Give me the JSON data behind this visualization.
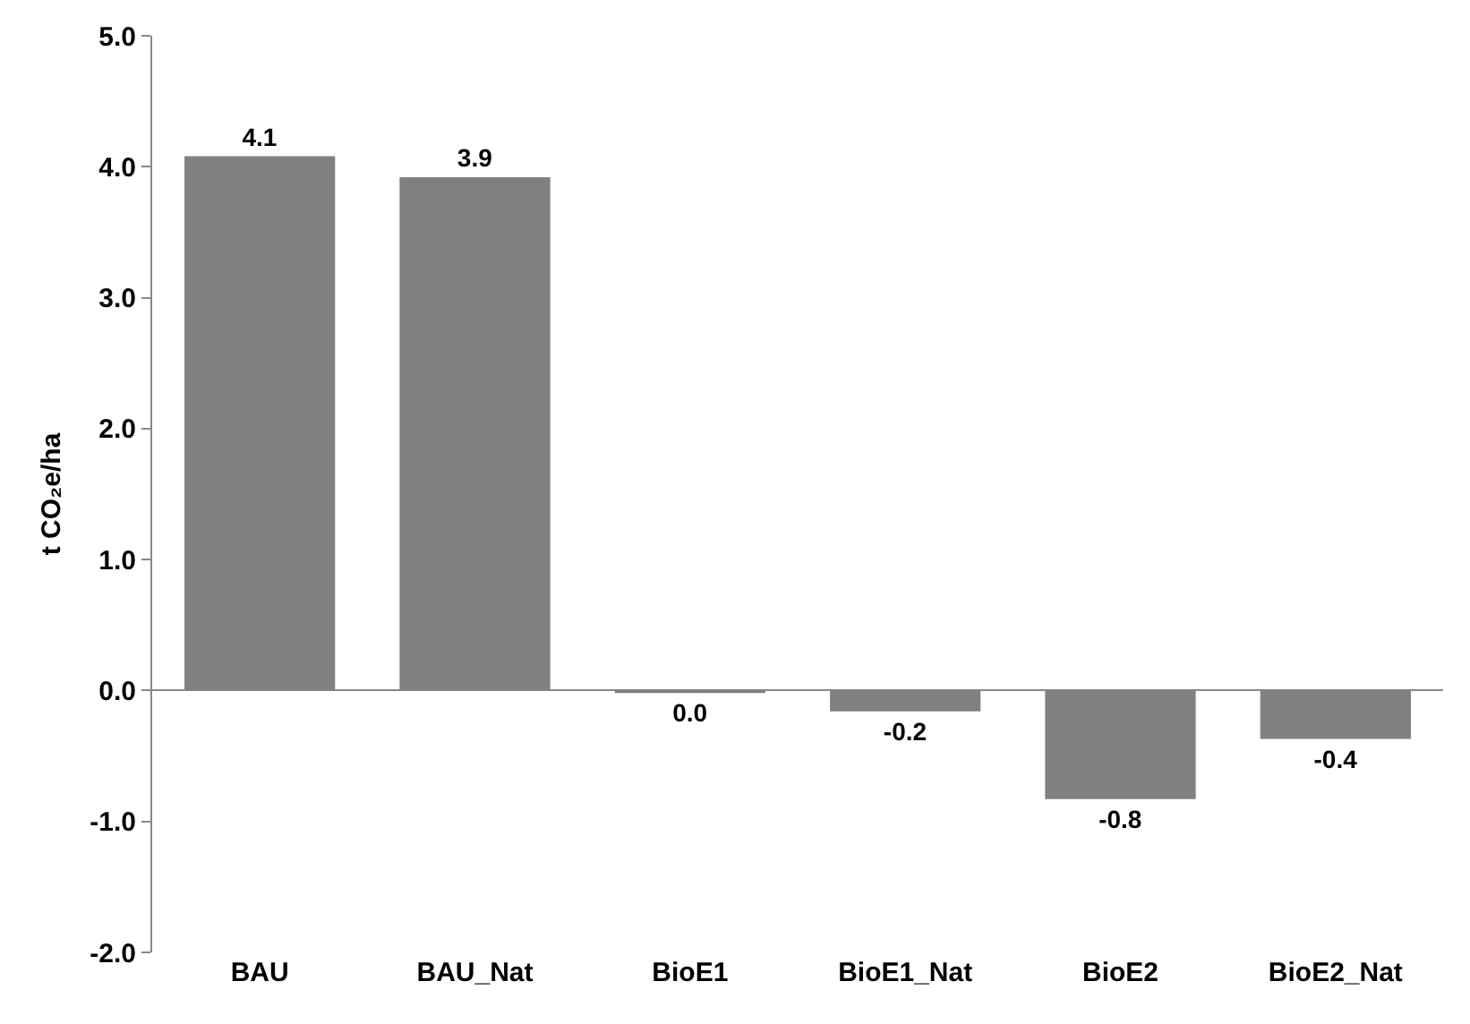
{
  "chart_data": {
    "type": "bar",
    "ylabel": "t CO₂e/ha",
    "categories": [
      "BAU",
      "BAU_Nat",
      "BioE1",
      "BioE1_Nat",
      "BioE2",
      "BioE2_Nat"
    ],
    "values": [
      4.08,
      3.92,
      -0.02,
      -0.16,
      -0.83,
      -0.37
    ],
    "value_labels": [
      "4.1",
      "3.9",
      "0.0",
      "-0.2",
      "-0.8",
      "-0.4"
    ],
    "color": "#808080",
    "ylim": [
      -2,
      5
    ],
    "yticks": [
      {
        "value": -2,
        "label": "-2.0"
      },
      {
        "value": -1,
        "label": "-1.0"
      },
      {
        "value": 0,
        "label": "0.0"
      },
      {
        "value": 1,
        "label": "1.0"
      },
      {
        "value": 2,
        "label": "2.0"
      },
      {
        "value": 3,
        "label": "3.0"
      },
      {
        "value": 4,
        "label": "4.0"
      },
      {
        "value": 5,
        "label": "5.0"
      }
    ],
    "legend": false
  }
}
